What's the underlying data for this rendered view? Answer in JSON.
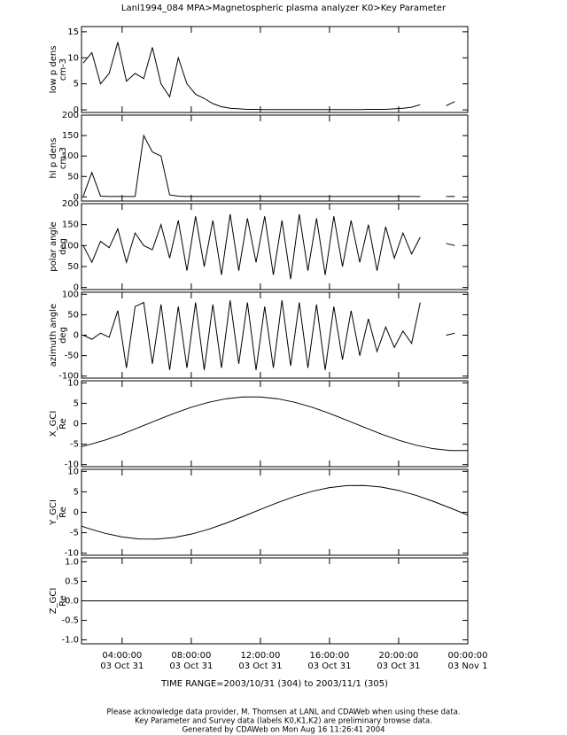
{
  "title": "Lanl1994_084  MPA>Magnetospheric plasma analyzer  K0>Key Parameter",
  "time_range": "TIME RANGE=2003/10/31 (304) to 2003/11/1 (305)",
  "footer": [
    "Please acknowledge data provider, M. Thomsen at LANL and CDAWeb when using these data.",
    "Key Parameter and Survey data (labels K0,K1,K2) are preliminary browse data.",
    "Generated by CDAWeb on Mon Aug 16 11:26:41 2004"
  ],
  "chart_data": [
    {
      "type": "line",
      "ylabel": "low p dens",
      "yunit": "cm-3",
      "color": "#000000",
      "xlim": [
        1.65,
        24
      ],
      "ylim": [
        -0.5,
        16
      ],
      "yticks": [
        0,
        5,
        10,
        15
      ],
      "x": [
        1.75,
        2.25,
        2.75,
        3.25,
        3.75,
        4.25,
        4.75,
        5.25,
        5.75,
        6.25,
        6.75,
        7.25,
        7.75,
        8.25,
        8.75,
        9.25,
        9.75,
        10.25,
        10.75,
        11.25,
        11.75,
        12.25,
        12.75,
        13.25,
        13.75,
        14.25,
        14.75,
        15.25,
        15.75,
        16.25,
        16.75,
        17.25,
        17.75,
        18.25,
        18.75,
        19.25,
        19.75,
        20.25,
        20.75,
        21.25,
        21.75,
        22.25,
        22.75,
        23.25,
        23.75
      ],
      "values": [
        9,
        11,
        5,
        7,
        13,
        5.5,
        7,
        6,
        12,
        5,
        2.5,
        10,
        5,
        3,
        2.2,
        1.2,
        0.6,
        0.3,
        0.2,
        0.1,
        0.1,
        0.05,
        0.05,
        0.05,
        0.05,
        0.05,
        0.05,
        0.05,
        0.05,
        0.05,
        0.05,
        0.05,
        0.05,
        0.1,
        0.1,
        0.1,
        0.2,
        0.3,
        0.5,
        1.0,
        null,
        null,
        0.8,
        1.6,
        null
      ]
    },
    {
      "type": "line",
      "ylabel": "hl p dens",
      "yunit": "cm-3",
      "color": "#000000",
      "xlim": [
        1.65,
        24
      ],
      "ylim": [
        -10,
        200
      ],
      "yticks": [
        0,
        50,
        100,
        150,
        200
      ],
      "x": [
        1.75,
        2.25,
        2.75,
        3.25,
        3.75,
        4.25,
        4.75,
        5.25,
        5.75,
        6.25,
        6.75,
        7.25,
        7.75,
        8.25,
        8.75,
        9.25,
        9.75,
        10.25,
        10.75,
        11.25,
        11.75,
        12.25,
        12.75,
        13.25,
        13.75,
        14.25,
        14.75,
        15.25,
        15.75,
        16.25,
        16.75,
        17.25,
        17.75,
        18.25,
        18.75,
        19.25,
        19.75,
        20.25,
        20.75,
        21.25,
        21.75,
        22.25,
        22.75,
        23.25,
        23.75
      ],
      "values": [
        2,
        60,
        2,
        1,
        1,
        1,
        1,
        150,
        110,
        100,
        5,
        2,
        1,
        1,
        1,
        1,
        1,
        1,
        1,
        1,
        1,
        1,
        1,
        1,
        1,
        1,
        1,
        1,
        1,
        1,
        1,
        1,
        1,
        1,
        1,
        1,
        1,
        1,
        1,
        1,
        null,
        null,
        1,
        1,
        null
      ]
    },
    {
      "type": "line",
      "ylabel": "polar angle",
      "yunit": "deg",
      "color": "#000000",
      "xlim": [
        1.65,
        24
      ],
      "ylim": [
        -5,
        200
      ],
      "yticks": [
        0,
        50,
        100,
        150,
        200
      ],
      "x": [
        1.75,
        2.25,
        2.75,
        3.25,
        3.75,
        4.25,
        4.75,
        5.25,
        5.75,
        6.25,
        6.75,
        7.25,
        7.75,
        8.25,
        8.75,
        9.25,
        9.75,
        10.25,
        10.75,
        11.25,
        11.75,
        12.25,
        12.75,
        13.25,
        13.75,
        14.25,
        14.75,
        15.25,
        15.75,
        16.25,
        16.75,
        17.25,
        17.75,
        18.25,
        18.75,
        19.25,
        19.75,
        20.25,
        20.75,
        21.25,
        21.75,
        22.25,
        22.75,
        23.25,
        23.75
      ],
      "values": [
        100,
        60,
        110,
        95,
        140,
        60,
        130,
        100,
        90,
        150,
        70,
        160,
        40,
        170,
        50,
        160,
        30,
        175,
        40,
        165,
        60,
        170,
        30,
        160,
        20,
        175,
        40,
        165,
        30,
        170,
        50,
        160,
        60,
        150,
        40,
        145,
        70,
        130,
        80,
        120,
        null,
        null,
        105,
        100,
        null
      ]
    },
    {
      "type": "line",
      "ylabel": "azimuth angle",
      "yunit": "deg",
      "color": "#000000",
      "xlim": [
        1.65,
        24
      ],
      "ylim": [
        -105,
        105
      ],
      "yticks": [
        -100,
        -50,
        0,
        50,
        100
      ],
      "x": [
        1.75,
        2.25,
        2.75,
        3.25,
        3.75,
        4.25,
        4.75,
        5.25,
        5.75,
        6.25,
        6.75,
        7.25,
        7.75,
        8.25,
        8.75,
        9.25,
        9.75,
        10.25,
        10.75,
        11.25,
        11.75,
        12.25,
        12.75,
        13.25,
        13.75,
        14.25,
        14.75,
        15.25,
        15.75,
        16.25,
        16.75,
        17.25,
        17.75,
        18.25,
        18.75,
        19.25,
        19.75,
        20.25,
        20.75,
        21.25,
        21.75,
        22.25,
        22.75,
        23.25,
        23.75
      ],
      "values": [
        0,
        -10,
        5,
        -5,
        60,
        -80,
        70,
        80,
        -70,
        75,
        -85,
        70,
        -80,
        80,
        -85,
        75,
        -80,
        85,
        -70,
        80,
        -85,
        70,
        -80,
        85,
        -75,
        80,
        -80,
        75,
        -85,
        70,
        -60,
        60,
        -50,
        40,
        -40,
        20,
        -30,
        10,
        -20,
        80,
        null,
        null,
        0,
        5,
        null
      ]
    },
    {
      "type": "line",
      "ylabel": "X_GCI",
      "yunit": "Re",
      "color": "#000000",
      "xlim": [
        1.65,
        24
      ],
      "ylim": [
        -10.5,
        10.5
      ],
      "yticks": [
        -10,
        -5,
        0,
        5,
        10
      ],
      "x": [
        1.65,
        2,
        3,
        4,
        5,
        6,
        7,
        8,
        9,
        10,
        11,
        12,
        13,
        14,
        15,
        16,
        17,
        18,
        19,
        20,
        21,
        22,
        23,
        24
      ],
      "values": [
        -5.58,
        -5.24,
        -4.02,
        -2.53,
        -0.86,
        0.86,
        2.53,
        4.02,
        5.24,
        6.1,
        6.54,
        6.54,
        6.1,
        5.24,
        4.02,
        2.53,
        0.86,
        -0.86,
        -2.53,
        -4.02,
        -5.24,
        -6.1,
        -6.54,
        -6.54
      ]
    },
    {
      "type": "line",
      "ylabel": "Y_GCI",
      "yunit": "Re",
      "color": "#000000",
      "xlim": [
        1.65,
        24
      ],
      "ylim": [
        -10.5,
        10.5
      ],
      "yticks": [
        -10,
        -5,
        0,
        5,
        10
      ],
      "x": [
        1.65,
        2,
        3,
        4,
        5,
        6,
        7,
        8,
        9,
        10,
        11,
        12,
        13,
        14,
        15,
        16,
        17,
        18,
        19,
        20,
        21,
        22,
        23,
        24
      ],
      "values": [
        -3.37,
        -3.88,
        -5.13,
        -6.03,
        -6.52,
        -6.56,
        -6.16,
        -5.34,
        -4.15,
        -2.68,
        -1.03,
        0.69,
        2.37,
        3.88,
        5.13,
        6.03,
        6.52,
        6.56,
        6.16,
        5.34,
        4.15,
        2.68,
        1.03,
        -0.69
      ]
    },
    {
      "type": "line",
      "ylabel": "Z_GCI",
      "yunit": "Re",
      "color": "#000000",
      "xlim": [
        1.65,
        24
      ],
      "ylim": [
        -1.1,
        1.1
      ],
      "yticks": [
        {
          "value": -1,
          "label": "-1.0"
        },
        {
          "value": -0.5,
          "label": "-0.5"
        },
        {
          "value": 0,
          "label": "0.0"
        },
        {
          "value": 0.5,
          "label": "0.5"
        },
        {
          "value": 1,
          "label": "1.0"
        }
      ],
      "x": [
        1.65,
        24
      ],
      "values": [
        0,
        0
      ],
      "xticks": [
        {
          "value": 4,
          "label": "04:00:00"
        },
        {
          "value": 8,
          "label": "08:00:00"
        },
        {
          "value": 12,
          "label": "12:00:00"
        },
        {
          "value": 16,
          "label": "16:00:00"
        },
        {
          "value": 20,
          "label": "20:00:00"
        },
        {
          "value": 24,
          "label": "00:00:00"
        }
      ],
      "xtick_dates": [
        "03 Oct 31",
        "03 Oct 31",
        "03 Oct 31",
        "03 Oct 31",
        "03 Oct 31",
        "03 Nov  1"
      ]
    }
  ]
}
